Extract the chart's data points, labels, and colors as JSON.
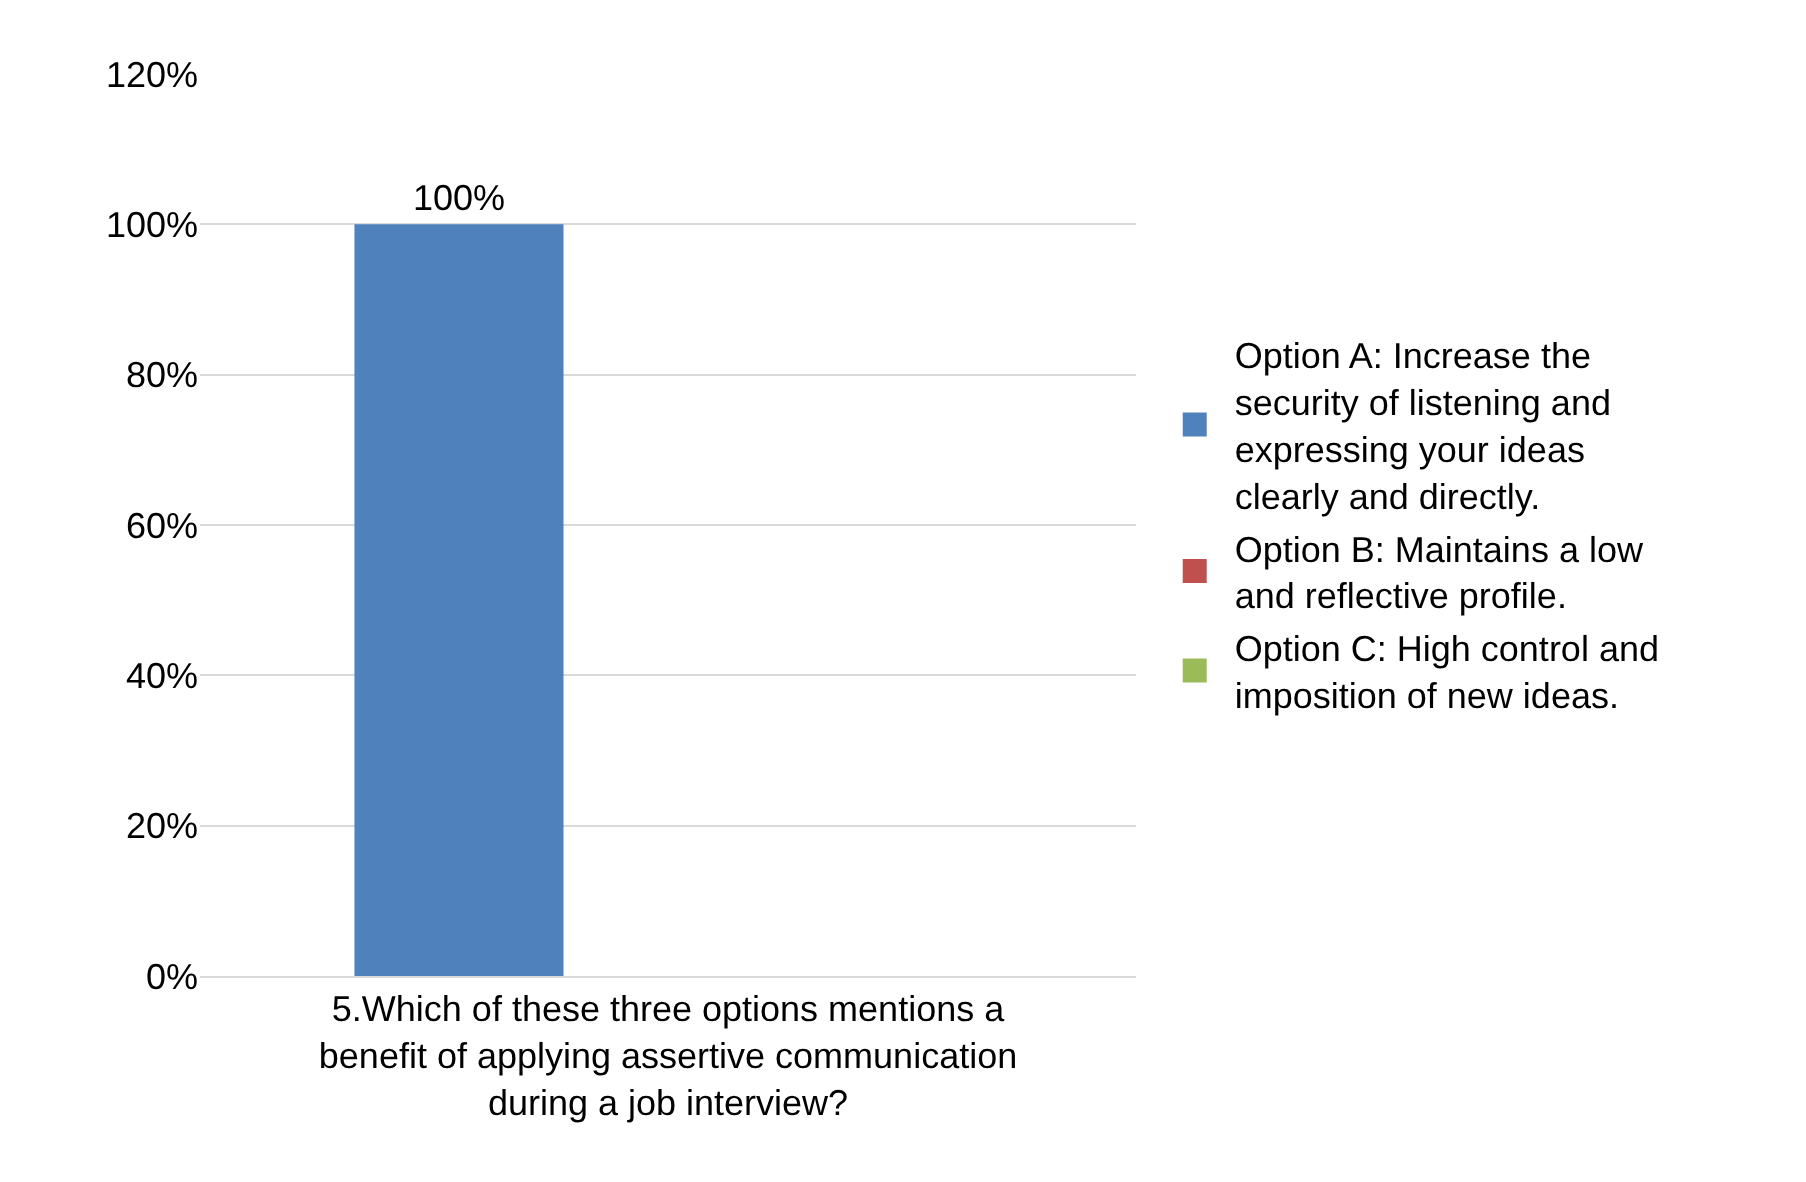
{
  "chart_data": {
    "type": "bar",
    "categories": [
      "5.Which of these three options mentions a benefit of applying assertive communication during a job interview?"
    ],
    "series": [
      {
        "name": "Option A: Increase the security of listening and expressing your ideas clearly and directly.",
        "color": "#4f81bd",
        "values": [
          100
        ],
        "value_labels": [
          "100%"
        ]
      },
      {
        "name": "Option B: Maintains a low and reflective profile.",
        "color": "#c0504d",
        "values": [
          0
        ],
        "value_labels": [
          null
        ]
      },
      {
        "name": "Option C: High control and imposition of new ideas.",
        "color": "#9bbb59",
        "values": [
          0
        ],
        "value_labels": [
          null
        ]
      }
    ],
    "ylim": [
      0,
      120
    ],
    "yticks": [
      {
        "value": 0,
        "label": "0%"
      },
      {
        "value": 20,
        "label": "20%"
      },
      {
        "value": 40,
        "label": "40%"
      },
      {
        "value": 60,
        "label": "60%"
      },
      {
        "value": 80,
        "label": "80%"
      },
      {
        "value": 100,
        "label": "100%"
      },
      {
        "value": 120,
        "label": "120%"
      }
    ],
    "grid": "y",
    "legend": "right"
  }
}
